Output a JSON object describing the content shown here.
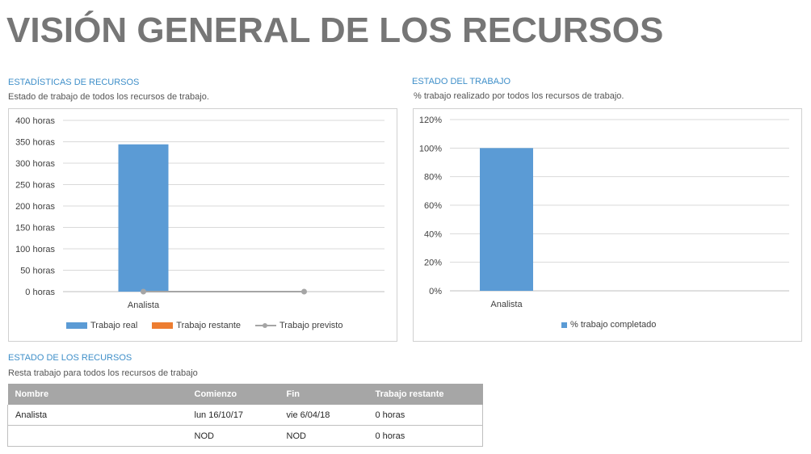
{
  "page_title": "VISIÓN GENERAL DE LOS RECURSOS",
  "resource_stats": {
    "title": "ESTADÍSTICAS DE RECURSOS",
    "subtitle": "Estado de trabajo de todos los recursos de trabajo."
  },
  "work_status": {
    "title": "ESTADO DEL TRABAJO",
    "subtitle": "% trabajo realizado por todos los recursos de trabajo."
  },
  "resource_status": {
    "title": "ESTADO DE LOS RECURSOS",
    "subtitle": "Resta trabajo para todos los recursos de trabajo",
    "columns": [
      "Nombre",
      "Comienzo",
      "Fin",
      "Trabajo restante"
    ],
    "rows": [
      [
        "Analista",
        "lun 16/10/17",
        "vie 6/04/18",
        "0 horas"
      ],
      [
        "",
        "NOD",
        "NOD",
        "0 horas"
      ]
    ]
  },
  "colors": {
    "actual": "#5b9bd5",
    "remaining": "#ed7d31",
    "planned": "#a5a5a5",
    "title": "#767676",
    "section": "#3f8fc9"
  },
  "chart_data": [
    {
      "type": "bar",
      "categories": [
        "Analista"
      ],
      "series": [
        {
          "name": "Trabajo real",
          "kind": "bar",
          "values": [
            344
          ]
        },
        {
          "name": "Trabajo restante",
          "kind": "bar",
          "values": [
            0
          ]
        },
        {
          "name": "Trabajo previsto",
          "kind": "line",
          "values": [
            0
          ]
        }
      ],
      "ylim": [
        0,
        400
      ],
      "yticks": [
        "0 horas",
        "50 horas",
        "100 horas",
        "150 horas",
        "200 horas",
        "250 horas",
        "300 horas",
        "350 horas",
        "400 horas"
      ],
      "grid": true,
      "legend": "bottom"
    },
    {
      "type": "bar",
      "categories": [
        "Analista"
      ],
      "series": [
        {
          "name": "% trabajo completado",
          "values": [
            100
          ]
        }
      ],
      "ylim": [
        0,
        120
      ],
      "yticks": [
        "0%",
        "20%",
        "40%",
        "60%",
        "80%",
        "100%",
        "120%"
      ],
      "grid": true,
      "legend": "bottom"
    }
  ]
}
